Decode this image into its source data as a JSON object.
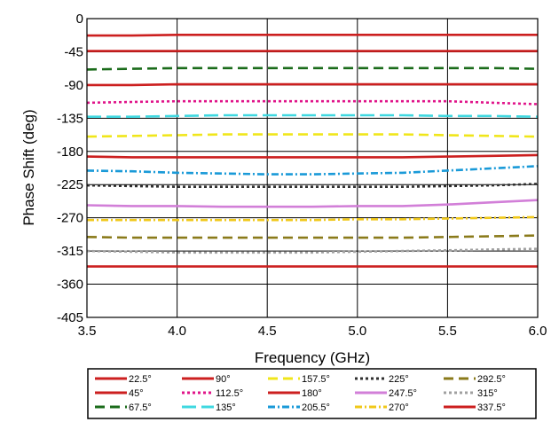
{
  "chart_data": {
    "type": "line",
    "title": "",
    "xlabel": "Frequency (GHz)",
    "ylabel": "Phase Shift (deg)",
    "xlim": [
      3.5,
      6.0
    ],
    "ylim": [
      -405,
      0
    ],
    "x_ticks": [
      "3.5",
      "4.0",
      "4.5",
      "5.0",
      "5.5",
      "6.0"
    ],
    "y_ticks": [
      "0",
      "-45",
      "-90",
      "-135",
      "-180",
      "-225",
      "-270",
      "-315",
      "-360",
      "-405"
    ],
    "grid": true,
    "legend_position": "bottom",
    "legend_columns": 6,
    "x": [
      3.5,
      3.75,
      4.0,
      4.25,
      4.5,
      4.75,
      5.0,
      5.25,
      5.5,
      5.75,
      6.0
    ],
    "series": [
      {
        "name": "22.5°",
        "color": "#cc1f1f",
        "dash": "solid",
        "values": [
          -23,
          -23,
          -22,
          -22,
          -22,
          -22,
          -22,
          -22,
          -22,
          -22,
          -22
        ]
      },
      {
        "name": "45°",
        "color": "#cc1f1f",
        "dash": "solid",
        "values": [
          -44,
          -44,
          -44,
          -44,
          -44,
          -44,
          -44,
          -44,
          -44,
          -44,
          -44
        ]
      },
      {
        "name": "67.5°",
        "color": "#1a6b1a",
        "dash": "dashed",
        "values": [
          -69,
          -68,
          -67,
          -67,
          -67,
          -67,
          -67,
          -67,
          -67,
          -67,
          -68
        ]
      },
      {
        "name": "90°",
        "color": "#cc1f1f",
        "dash": "solid",
        "values": [
          -90,
          -90,
          -89,
          -89,
          -89,
          -89,
          -89,
          -89,
          -89,
          -89,
          -89
        ]
      },
      {
        "name": "112.5°",
        "color": "#e0148a",
        "dash": "dotted",
        "values": [
          -114,
          -113,
          -112,
          -112,
          -112,
          -112,
          -112,
          -112,
          -112,
          -114,
          -116
        ]
      },
      {
        "name": "135°",
        "color": "#3fd8e0",
        "dash": "longdash",
        "values": [
          -133,
          -133,
          -132,
          -131,
          -131,
          -131,
          -131,
          -131,
          -132,
          -132,
          -133
        ]
      },
      {
        "name": "157.5°",
        "color": "#f0e61a",
        "dash": "dashed",
        "values": [
          -160,
          -159,
          -158,
          -157,
          -157,
          -157,
          -157,
          -157,
          -158,
          -159,
          -160
        ]
      },
      {
        "name": "180°",
        "color": "#cc1f1f",
        "dash": "solid",
        "values": [
          -187,
          -188,
          -188,
          -188,
          -188,
          -188,
          -188,
          -188,
          -187,
          -186,
          -185
        ]
      },
      {
        "name": "205.5°",
        "color": "#1a9ad8",
        "dash": "dotdash",
        "values": [
          -206,
          -207,
          -209,
          -210,
          -211,
          -211,
          -210,
          -209,
          -206,
          -203,
          -200
        ]
      },
      {
        "name": "225°",
        "color": "#303030",
        "dash": "dotted",
        "values": [
          -226,
          -227,
          -228,
          -228,
          -228,
          -228,
          -228,
          -228,
          -227,
          -226,
          -224
        ]
      },
      {
        "name": "247.5°",
        "color": "#d27fd8",
        "dash": "solid",
        "values": [
          -253,
          -254,
          -254,
          -255,
          -255,
          -255,
          -254,
          -254,
          -252,
          -249,
          -246
        ]
      },
      {
        "name": "270°",
        "color": "#f0c81a",
        "dash": "dotdash",
        "values": [
          -273,
          -273,
          -273,
          -273,
          -273,
          -273,
          -272,
          -272,
          -271,
          -270,
          -269
        ]
      },
      {
        "name": "292.5°",
        "color": "#8a7a1a",
        "dash": "dashed",
        "values": [
          -296,
          -297,
          -297,
          -297,
          -297,
          -297,
          -297,
          -297,
          -296,
          -295,
          -294
        ]
      },
      {
        "name": "315°",
        "color": "#a0a0a0",
        "dash": "dotted",
        "values": [
          -315,
          -316,
          -317,
          -317,
          -317,
          -317,
          -316,
          -315,
          -314,
          -313,
          -312
        ]
      },
      {
        "name": "337.5°",
        "color": "#cc1f1f",
        "dash": "solid",
        "values": [
          -336,
          -336,
          -336,
          -336,
          -336,
          -336,
          -336,
          -336,
          -336,
          -336,
          -336
        ]
      }
    ]
  }
}
